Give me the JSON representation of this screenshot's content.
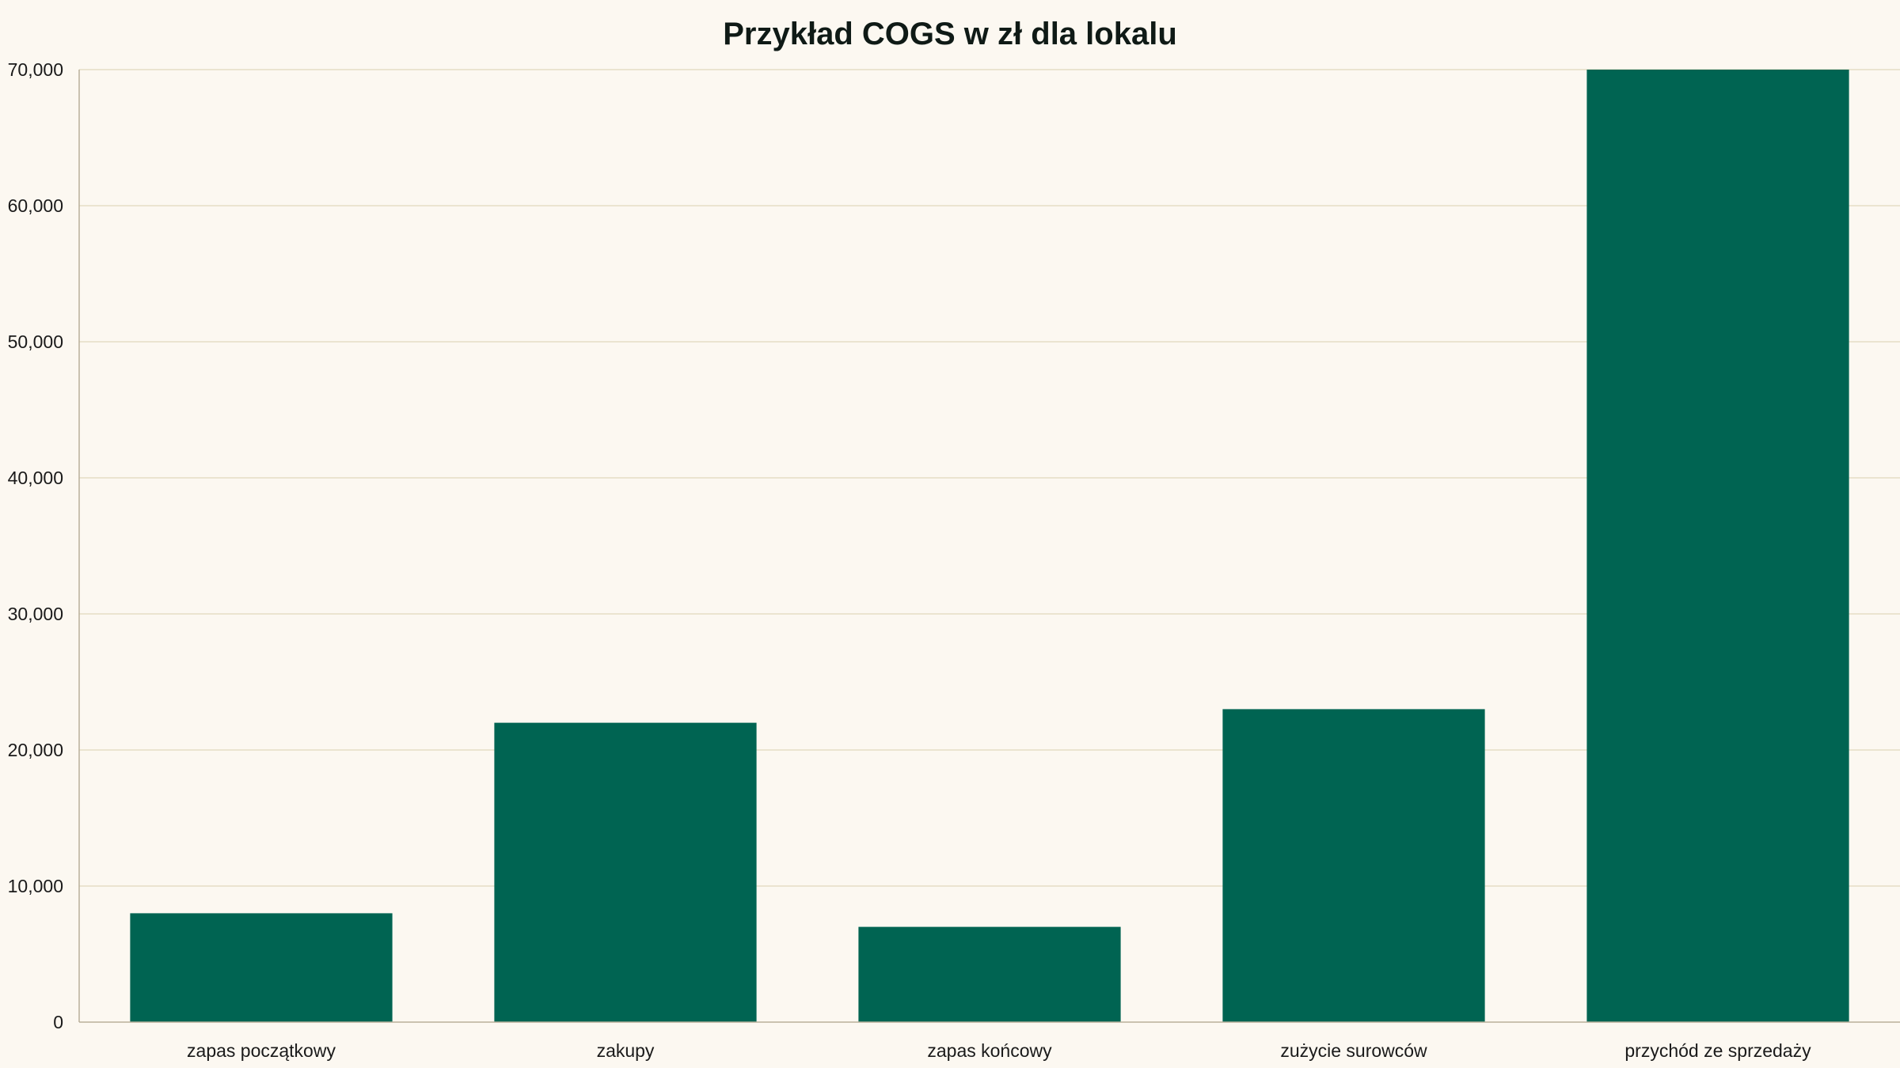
{
  "chart_data": {
    "type": "bar",
    "title": "Przykład COGS w zł dla lokalu",
    "xlabel": "",
    "ylabel": "",
    "categories": [
      "zapas początkowy",
      "zakupy",
      "zapas końcowy",
      "zużycie surowców",
      "przychód ze sprzedaży"
    ],
    "values": [
      8000,
      22000,
      7000,
      23000,
      70000
    ],
    "ylim": [
      0,
      70000
    ],
    "yticks": [
      0,
      10000,
      20000,
      30000,
      40000,
      50000,
      60000,
      70000
    ],
    "ytick_labels": [
      "0",
      "10,000",
      "20,000",
      "30,000",
      "40,000",
      "50,000",
      "60,000",
      "70,000"
    ],
    "grid": true,
    "legend": "none"
  },
  "colors": {
    "background": "#fcf8f1",
    "bar": "#006452",
    "grid": "#e5ddc5",
    "axis": "#b9b09a",
    "text": "#1a1a1a"
  }
}
